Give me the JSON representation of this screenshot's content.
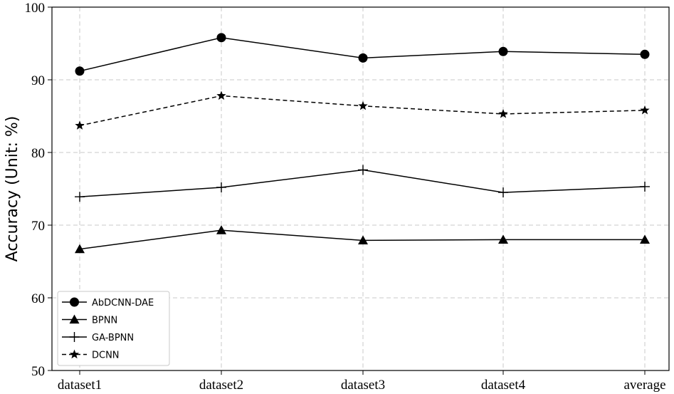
{
  "chart_data": {
    "type": "line",
    "title": "",
    "xlabel": "",
    "ylabel": "Accuracy (Unit: %)",
    "categories": [
      "dataset1",
      "dataset2",
      "dataset3",
      "dataset4",
      "average"
    ],
    "ylim": [
      50,
      100
    ],
    "yticks": [
      50,
      60,
      70,
      80,
      90,
      100
    ],
    "grid": true,
    "legend_position": "bottom-left",
    "series": [
      {
        "name": "AbDCNN-DAE",
        "marker": "circle",
        "dash": "solid",
        "values": [
          91.2,
          95.8,
          93.0,
          93.9,
          93.5
        ]
      },
      {
        "name": "BPNN",
        "marker": "triangle",
        "dash": "solid",
        "values": [
          66.7,
          69.3,
          67.9,
          68.0,
          68.0
        ]
      },
      {
        "name": "GA-BPNN",
        "marker": "plus",
        "dash": "solid",
        "values": [
          73.9,
          75.2,
          77.6,
          74.5,
          75.3
        ]
      },
      {
        "name": "DCNN",
        "marker": "star",
        "dash": "dashed",
        "values": [
          83.7,
          87.8,
          86.4,
          85.3,
          85.8
        ]
      }
    ]
  }
}
